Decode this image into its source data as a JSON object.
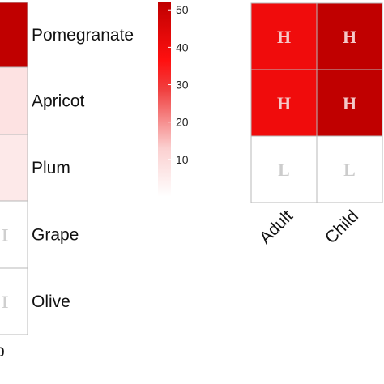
{
  "chart_data": [
    {
      "type": "heatmap",
      "rows": [
        "Pomegranate",
        "Apricot",
        "Plum",
        "Grape",
        "Olive"
      ],
      "values": [
        52,
        8,
        6,
        0,
        0
      ],
      "letters": [
        "",
        "",
        "",
        "",
        ""
      ],
      "colorbar": {
        "ticks": [
          "50",
          "40",
          "30",
          "20",
          "10"
        ],
        "tick_values": [
          50,
          40,
          30,
          20,
          10
        ],
        "range": [
          0,
          52
        ],
        "low_color": "#ffffff",
        "high_color": "#c00000"
      },
      "partial_label": "p",
      "trailing_letters": [
        "",
        "",
        "",
        "I",
        "I"
      ]
    },
    {
      "type": "heatmap",
      "columns": [
        "Adult",
        "Child"
      ],
      "rows": 3,
      "values": [
        [
          40,
          52
        ],
        [
          40,
          52
        ],
        [
          0,
          0
        ]
      ],
      "letters": [
        [
          "H",
          "H"
        ],
        [
          "H",
          "H"
        ],
        [
          "L",
          "L"
        ]
      ]
    }
  ]
}
